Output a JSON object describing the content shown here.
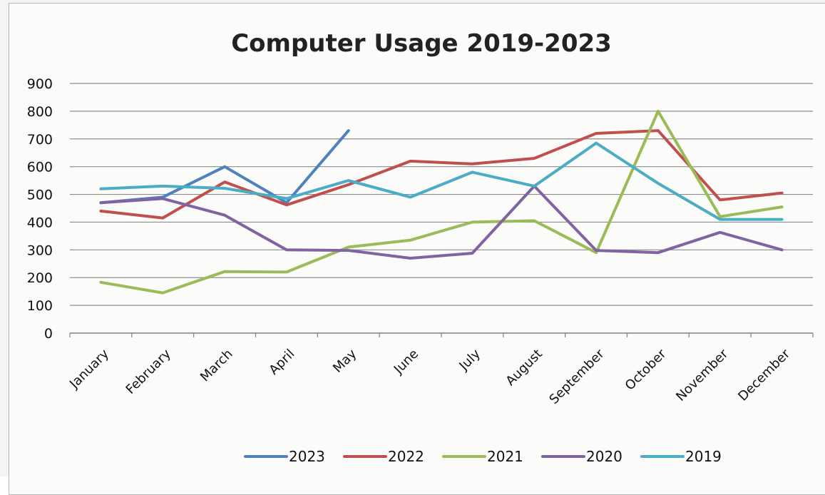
{
  "chart_data": {
    "type": "line",
    "title": "Computer Usage 2019-2023",
    "xlabel": "",
    "ylabel": "",
    "ylim": [
      0,
      900
    ],
    "yticks": [
      "0",
      "100",
      "200",
      "300",
      "400",
      "500",
      "600",
      "700",
      "800",
      "900"
    ],
    "grid": "horizontal",
    "legend_position": "bottom",
    "categories": [
      "January",
      "February",
      "March",
      "April",
      "May",
      "June",
      "July",
      "August",
      "September",
      "October",
      "November",
      "December"
    ],
    "series": [
      {
        "name": "2023",
        "color": "#4f81bd",
        "values": [
          470,
          490,
          600,
          470,
          730,
          null,
          null,
          null,
          null,
          null,
          null,
          null
        ]
      },
      {
        "name": "2022",
        "color": "#c0504d",
        "values": [
          440,
          415,
          545,
          462,
          535,
          620,
          610,
          630,
          720,
          730,
          480,
          505
        ]
      },
      {
        "name": "2021",
        "color": "#9bbb59",
        "values": [
          183,
          145,
          222,
          220,
          310,
          335,
          400,
          405,
          290,
          800,
          420,
          455
        ]
      },
      {
        "name": "2020",
        "color": "#8064a2",
        "values": [
          470,
          485,
          425,
          300,
          298,
          270,
          288,
          530,
          298,
          290,
          363,
          300
        ]
      },
      {
        "name": "2019",
        "color": "#4bacc6",
        "values": [
          520,
          530,
          522,
          485,
          550,
          490,
          580,
          530,
          685,
          540,
          410,
          410
        ]
      }
    ]
  }
}
